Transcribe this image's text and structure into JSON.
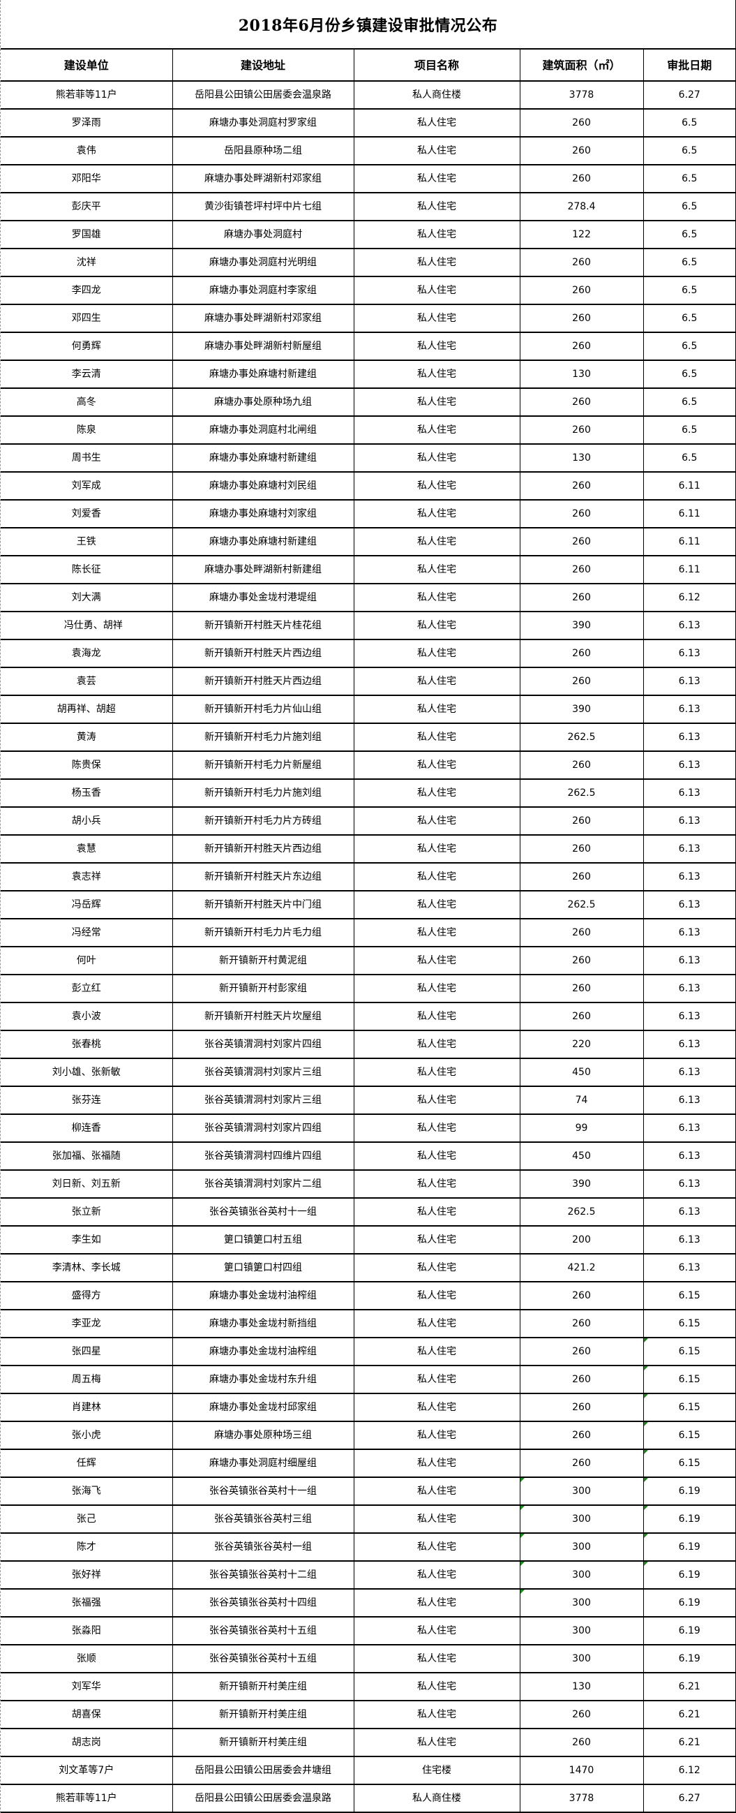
{
  "title": "2018年6月份乡镇建设审批情况公布",
  "columns": [
    "建设单位",
    "建设地址",
    "项目名称",
    "建筑面积（㎡）",
    "审批日期"
  ],
  "colors": {
    "border": "#000000",
    "error_indicator": "#1a8a1a"
  },
  "rows": [
    [
      "熊若菲等11户",
      "岳阳县公田镇公田居委会温泉路",
      "私人商住楼",
      "3778",
      "6.27"
    ],
    [
      "罗泽雨",
      "麻塘办事处洞庭村罗家组",
      "私人住宅",
      "260",
      "6.5"
    ],
    [
      "袁伟",
      "岳阳县原种场二组",
      "私人住宅",
      "260",
      "6.5"
    ],
    [
      "邓阳华",
      "麻塘办事处畔湖新村邓家组",
      "私人住宅",
      "260",
      "6.5"
    ],
    [
      "彭庆平",
      "黄沙街镇苍坪村坪中片七组",
      "私人住宅",
      "278.4",
      "6.5"
    ],
    [
      "罗国雄",
      "麻塘办事处洞庭村",
      "私人住宅",
      "122",
      "6.5"
    ],
    [
      "沈祥",
      "麻塘办事处洞庭村光明组",
      "私人住宅",
      "260",
      "6.5"
    ],
    [
      "李四龙",
      "麻塘办事处洞庭村李家组",
      "私人住宅",
      "260",
      "6.5"
    ],
    [
      "邓四生",
      "麻塘办事处畔湖新村邓家组",
      "私人住宅",
      "260",
      "6.5"
    ],
    [
      "何勇辉",
      "麻塘办事处畔湖新村新屋组",
      "私人住宅",
      "260",
      "6.5"
    ],
    [
      "李云清",
      "麻塘办事处麻塘村新建组",
      "私人住宅",
      "130",
      "6.5"
    ],
    [
      "高冬",
      "麻塘办事处原种场九组",
      "私人住宅",
      "260",
      "6.5"
    ],
    [
      "陈泉",
      "麻塘办事处洞庭村北闸组",
      "私人住宅",
      "260",
      "6.5"
    ],
    [
      "周书生",
      "麻塘办事处麻塘村新建组",
      "私人住宅",
      "130",
      "6.5"
    ],
    [
      "刘军成",
      "麻塘办事处麻塘村刘民组",
      "私人住宅",
      "260",
      "6.11"
    ],
    [
      "刘爱香",
      "麻塘办事处麻塘村刘家组",
      "私人住宅",
      "260",
      "6.11"
    ],
    [
      "王铁",
      "麻塘办事处麻塘村新建组",
      "私人住宅",
      "260",
      "6.11"
    ],
    [
      "陈长征",
      "麻塘办事处畔湖新村新建组",
      "私人住宅",
      "260",
      "6.11"
    ],
    [
      "刘大满",
      "麻塘办事处金垅村港堤组",
      "私人住宅",
      "260",
      "6.12"
    ],
    [
      "冯仕勇、胡祥",
      "新开镇新开村胜天片桂花组",
      "私人住宅",
      "390",
      "6.13"
    ],
    [
      "袁海龙",
      "新开镇新开村胜天片西边组",
      "私人住宅",
      "260",
      "6.13"
    ],
    [
      "袁芸",
      "新开镇新开村胜天片西边组",
      "私人住宅",
      "260",
      "6.13"
    ],
    [
      "胡再祥、胡超",
      "新开镇新开村毛力片仙山组",
      "私人住宅",
      "390",
      "6.13"
    ],
    [
      "黄涛",
      "新开镇新开村毛力片施刘组",
      "私人住宅",
      "262.5",
      "6.13"
    ],
    [
      "陈贵保",
      "新开镇新开村毛力片新屋组",
      "私人住宅",
      "260",
      "6.13"
    ],
    [
      "杨玉香",
      "新开镇新开村毛力片施刘组",
      "私人住宅",
      "262.5",
      "6.13"
    ],
    [
      "胡小兵",
      "新开镇新开村毛力片方砖组",
      "私人住宅",
      "260",
      "6.13"
    ],
    [
      "袁慧",
      "新开镇新开村胜天片西边组",
      "私人住宅",
      "260",
      "6.13"
    ],
    [
      "袁志祥",
      "新开镇新开村胜天片东边组",
      "私人住宅",
      "260",
      "6.13"
    ],
    [
      "冯岳辉",
      "新开镇新开村胜天片中门组",
      "私人住宅",
      "262.5",
      "6.13"
    ],
    [
      "冯经常",
      "新开镇新开村毛力片毛力组",
      "私人住宅",
      "260",
      "6.13"
    ],
    [
      "何叶",
      "新开镇新开村黄泥组",
      "私人住宅",
      "260",
      "6.13"
    ],
    [
      "彭立红",
      "新开镇新开村彭家组",
      "私人住宅",
      "260",
      "6.13"
    ],
    [
      "袁小波",
      "新开镇新开村胜天片坎屋组",
      "私人住宅",
      "260",
      "6.13"
    ],
    [
      "张春桃",
      "张谷英镇渭洞村刘家片四组",
      "私人住宅",
      "220",
      "6.13"
    ],
    [
      "刘小雄、张新敏",
      "张谷英镇渭洞村刘家片三组",
      "私人住宅",
      "450",
      "6.13"
    ],
    [
      "张芬连",
      "张谷英镇渭洞村刘家片三组",
      "私人住宅",
      "74",
      "6.13"
    ],
    [
      "柳连香",
      "张谷英镇渭洞村刘家片四组",
      "私人住宅",
      "99",
      "6.13"
    ],
    [
      "张加福、张福随",
      "张谷英镇渭洞村四维片四组",
      "私人住宅",
      "450",
      "6.13"
    ],
    [
      "刘日新、刘五新",
      "张谷英镇渭洞村刘家片二组",
      "私人住宅",
      "390",
      "6.13"
    ],
    [
      "张立新",
      "张谷英镇张谷英村十一组",
      "私人住宅",
      "262.5",
      "6.13"
    ],
    [
      "李生如",
      "筻口镇筻口村五组",
      "私人住宅",
      "200",
      "6.13"
    ],
    [
      "李清林、李长城",
      "筻口镇筻口村四组",
      "私人住宅",
      "421.2",
      "6.13"
    ],
    [
      "盛得方",
      "麻塘办事处金垅村油榨组",
      "私人住宅",
      "260",
      "6.15"
    ],
    [
      "李亚龙",
      "麻塘办事处金垅村新挡组",
      "私人住宅",
      "260",
      "6.15"
    ],
    [
      "张四星",
      "麻塘办事处金垅村油榨组",
      "私人住宅",
      "260",
      "6.15"
    ],
    [
      "周五梅",
      "麻塘办事处金垅村东升组",
      "私人住宅",
      "260",
      "6.15"
    ],
    [
      "肖建林",
      "麻塘办事处金垅村邱家组",
      "私人住宅",
      "260",
      "6.15"
    ],
    [
      "张小虎",
      "麻塘办事处原种场三组",
      "私人住宅",
      "260",
      "6.15"
    ],
    [
      "任辉",
      "麻塘办事处洞庭村细屋组",
      "私人住宅",
      "260",
      "6.15"
    ],
    [
      "张海飞",
      "张谷英镇张谷英村十一组",
      "私人住宅",
      "300",
      "6.19"
    ],
    [
      "张己",
      "张谷英镇张谷英村三组",
      "私人住宅",
      "300",
      "6.19"
    ],
    [
      "陈才",
      "张谷英镇张谷英村一组",
      "私人住宅",
      "300",
      "6.19"
    ],
    [
      "张好祥",
      "张谷英镇张谷英村十二组",
      "私人住宅",
      "300",
      "6.19"
    ],
    [
      "张福强",
      "张谷英镇张谷英村十四组",
      "私人住宅",
      "300",
      "6.19"
    ],
    [
      "张淼阳",
      "张谷英镇张谷英村十五组",
      "私人住宅",
      "300",
      "6.19"
    ],
    [
      "张顺",
      "张谷英镇张谷英村十五组",
      "私人住宅",
      "300",
      "6.19"
    ],
    [
      "刘军华",
      "新开镇新开村美庄组",
      "私人住宅",
      "130",
      "6.21"
    ],
    [
      "胡喜保",
      "新开镇新开村美庄组",
      "私人住宅",
      "260",
      "6.21"
    ],
    [
      "胡志岗",
      "新开镇新开村美庄组",
      "私人住宅",
      "260",
      "6.21"
    ],
    [
      "刘文革等7户",
      "岳阳县公田镇公田居委会井塘组",
      "住宅楼",
      "1470",
      "6.12"
    ],
    [
      "熊若菲等11户",
      "岳阳县公田镇公田居委会温泉路",
      "私人商住楼",
      "3778",
      "6.27"
    ]
  ],
  "error_indicator_rows": {
    "area": [
      51,
      52,
      53,
      54,
      55
    ],
    "date": [
      46,
      47,
      48,
      49,
      50,
      51,
      52,
      53,
      54
    ]
  }
}
